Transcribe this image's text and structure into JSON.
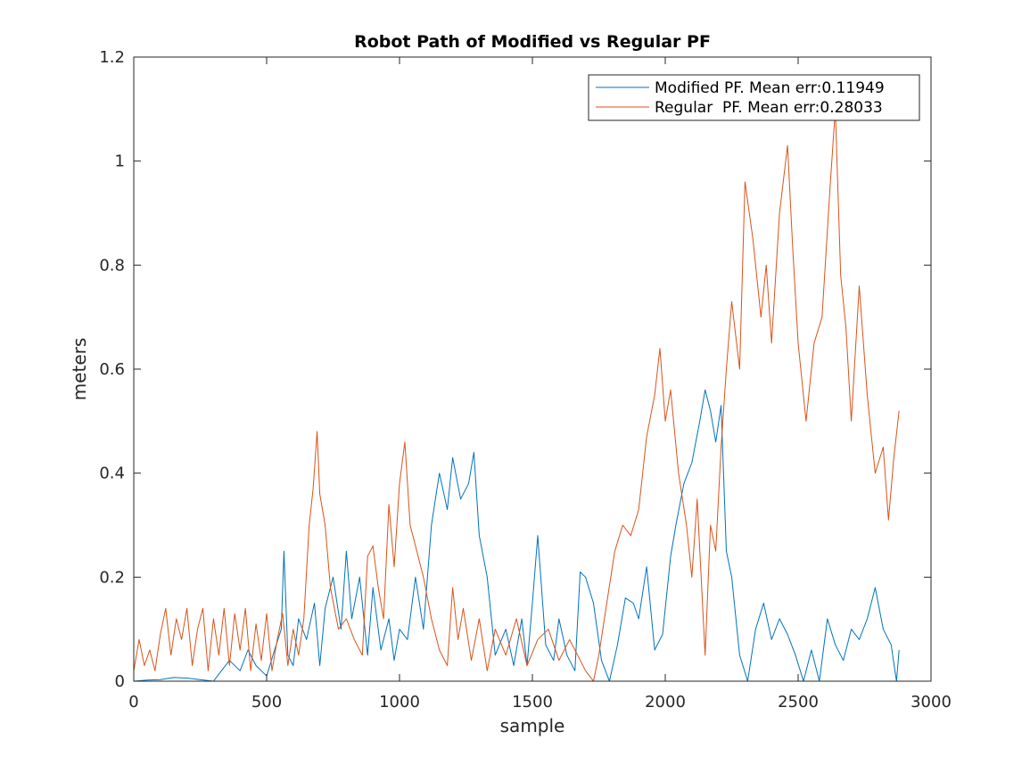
{
  "chart_data": {
    "type": "line",
    "title": "Robot Path of Modified vs Regular PF",
    "xlabel": "sample",
    "ylabel": "meters",
    "xlim": [
      0,
      3000
    ],
    "ylim": [
      0,
      1.2
    ],
    "xticks": [
      0,
      500,
      1000,
      1500,
      2000,
      2500,
      3000
    ],
    "yticks": [
      0,
      0.2,
      0.4,
      0.6,
      0.8,
      1,
      1.2
    ],
    "xtick_labels": [
      "0",
      "500",
      "1000",
      "1500",
      "2000",
      "2500",
      "3000"
    ],
    "ytick_labels": [
      "0",
      "0.2",
      "0.4",
      "0.6",
      "0.8",
      "1",
      "1.2"
    ],
    "grid": false,
    "legend_position": "top-right",
    "series": [
      {
        "name": "Modified PF. Mean err:0.11949",
        "color": "#0072BD",
        "x": [
          0,
          50,
          100,
          150,
          200,
          250,
          300,
          330,
          360,
          400,
          430,
          460,
          500,
          530,
          555,
          565,
          580,
          600,
          620,
          650,
          680,
          700,
          720,
          750,
          780,
          800,
          820,
          850,
          880,
          900,
          930,
          960,
          980,
          1000,
          1030,
          1060,
          1090,
          1120,
          1150,
          1180,
          1200,
          1230,
          1260,
          1280,
          1300,
          1330,
          1360,
          1400,
          1430,
          1460,
          1480,
          1500,
          1520,
          1550,
          1580,
          1600,
          1630,
          1660,
          1680,
          1700,
          1730,
          1760,
          1790,
          1820,
          1850,
          1880,
          1900,
          1930,
          1960,
          1990,
          2020,
          2040,
          2070,
          2100,
          2130,
          2150,
          2170,
          2190,
          2210,
          2230,
          2250,
          2280,
          2310,
          2340,
          2370,
          2400,
          2430,
          2460,
          2490,
          2520,
          2550,
          2580,
          2610,
          2640,
          2670,
          2700,
          2730,
          2760,
          2790,
          2820,
          2850,
          2870,
          2880
        ],
        "values": [
          0.0,
          0.002,
          0.003,
          0.007,
          0.006,
          0.003,
          0.0,
          0.02,
          0.04,
          0.02,
          0.06,
          0.03,
          0.01,
          0.06,
          0.1,
          0.25,
          0.05,
          0.03,
          0.12,
          0.08,
          0.15,
          0.03,
          0.14,
          0.2,
          0.1,
          0.25,
          0.12,
          0.2,
          0.05,
          0.18,
          0.06,
          0.12,
          0.04,
          0.1,
          0.08,
          0.2,
          0.1,
          0.3,
          0.4,
          0.33,
          0.43,
          0.35,
          0.38,
          0.44,
          0.28,
          0.2,
          0.05,
          0.1,
          0.03,
          0.12,
          0.03,
          0.15,
          0.28,
          0.07,
          0.04,
          0.12,
          0.05,
          0.02,
          0.21,
          0.2,
          0.15,
          0.04,
          0.0,
          0.07,
          0.16,
          0.15,
          0.12,
          0.22,
          0.06,
          0.09,
          0.24,
          0.3,
          0.38,
          0.42,
          0.5,
          0.56,
          0.52,
          0.46,
          0.53,
          0.25,
          0.2,
          0.05,
          0.0,
          0.1,
          0.15,
          0.08,
          0.12,
          0.09,
          0.05,
          0.0,
          0.06,
          0.0,
          0.12,
          0.07,
          0.04,
          0.1,
          0.08,
          0.12,
          0.18,
          0.1,
          0.07,
          0.0,
          0.06
        ]
      },
      {
        "name": "Regular  PF. Mean err:0.28033",
        "color": "#D95319",
        "x": [
          0,
          20,
          40,
          60,
          80,
          100,
          120,
          140,
          160,
          180,
          200,
          220,
          240,
          260,
          280,
          300,
          320,
          340,
          360,
          380,
          400,
          420,
          440,
          460,
          480,
          500,
          520,
          540,
          560,
          580,
          600,
          620,
          640,
          660,
          675,
          690,
          700,
          720,
          740,
          770,
          800,
          830,
          860,
          880,
          900,
          920,
          940,
          960,
          980,
          1000,
          1020,
          1040,
          1060,
          1090,
          1120,
          1150,
          1180,
          1200,
          1220,
          1240,
          1270,
          1300,
          1330,
          1360,
          1400,
          1440,
          1480,
          1520,
          1560,
          1600,
          1640,
          1670,
          1700,
          1730,
          1750,
          1780,
          1810,
          1840,
          1870,
          1900,
          1930,
          1960,
          1980,
          2000,
          2020,
          2050,
          2080,
          2100,
          2120,
          2150,
          2170,
          2190,
          2210,
          2230,
          2250,
          2280,
          2300,
          2330,
          2360,
          2380,
          2400,
          2430,
          2460,
          2480,
          2500,
          2530,
          2560,
          2590,
          2620,
          2640,
          2660,
          2680,
          2700,
          2730,
          2760,
          2790,
          2820,
          2840,
          2860,
          2880
        ],
        "values": [
          0.02,
          0.08,
          0.03,
          0.06,
          0.02,
          0.09,
          0.14,
          0.05,
          0.12,
          0.08,
          0.14,
          0.03,
          0.1,
          0.14,
          0.02,
          0.12,
          0.05,
          0.14,
          0.03,
          0.13,
          0.06,
          0.14,
          0.02,
          0.11,
          0.04,
          0.13,
          0.02,
          0.08,
          0.13,
          0.03,
          0.1,
          0.05,
          0.12,
          0.3,
          0.37,
          0.48,
          0.36,
          0.3,
          0.18,
          0.1,
          0.12,
          0.08,
          0.05,
          0.24,
          0.26,
          0.18,
          0.12,
          0.34,
          0.22,
          0.38,
          0.46,
          0.3,
          0.26,
          0.2,
          0.12,
          0.06,
          0.03,
          0.18,
          0.08,
          0.14,
          0.04,
          0.12,
          0.02,
          0.1,
          0.05,
          0.12,
          0.03,
          0.08,
          0.1,
          0.04,
          0.08,
          0.05,
          0.02,
          0.0,
          0.05,
          0.15,
          0.25,
          0.3,
          0.28,
          0.33,
          0.47,
          0.55,
          0.64,
          0.5,
          0.56,
          0.4,
          0.3,
          0.2,
          0.35,
          0.05,
          0.3,
          0.25,
          0.45,
          0.6,
          0.73,
          0.6,
          0.96,
          0.85,
          0.7,
          0.8,
          0.65,
          0.9,
          1.03,
          0.83,
          0.65,
          0.5,
          0.65,
          0.7,
          0.95,
          1.1,
          0.78,
          0.68,
          0.5,
          0.76,
          0.55,
          0.4,
          0.45,
          0.31,
          0.43,
          0.52
        ]
      }
    ]
  }
}
